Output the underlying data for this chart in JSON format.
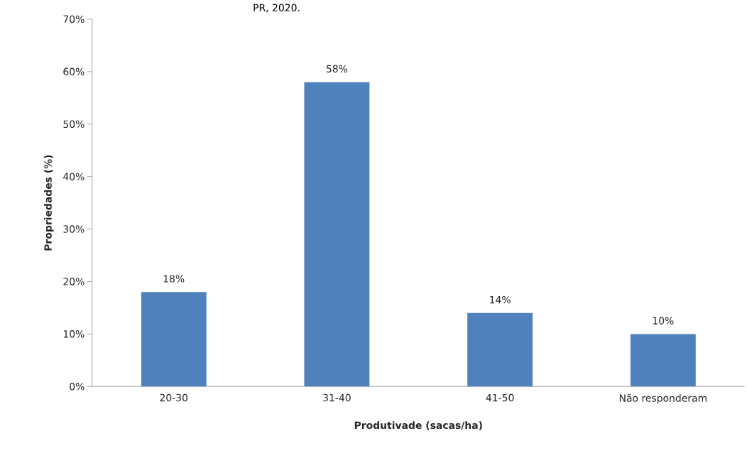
{
  "chart_data": {
    "type": "bar",
    "annotations": [
      "PR, 2020."
    ],
    "xlabel": "Produtivade (sacas/ha)",
    "ylabel": "Propriedades (%)",
    "categories": [
      "20-30",
      "31-40",
      "41-50",
      "Não responderam"
    ],
    "values": [
      18,
      58,
      14,
      10
    ],
    "value_labels": [
      "18%",
      "58%",
      "14%",
      "10%"
    ],
    "color": "#4f81bd",
    "ylim": [
      0,
      70
    ],
    "yticks": [
      {
        "value": 0,
        "label": "0%"
      },
      {
        "value": 10,
        "label": "10%"
      },
      {
        "value": 20,
        "label": "20%"
      },
      {
        "value": 30,
        "label": "30%"
      },
      {
        "value": 40,
        "label": "40%"
      },
      {
        "value": 50,
        "label": "50%"
      },
      {
        "value": 60,
        "label": "60%"
      },
      {
        "value": 70,
        "label": "70%"
      }
    ],
    "grid": false
  }
}
